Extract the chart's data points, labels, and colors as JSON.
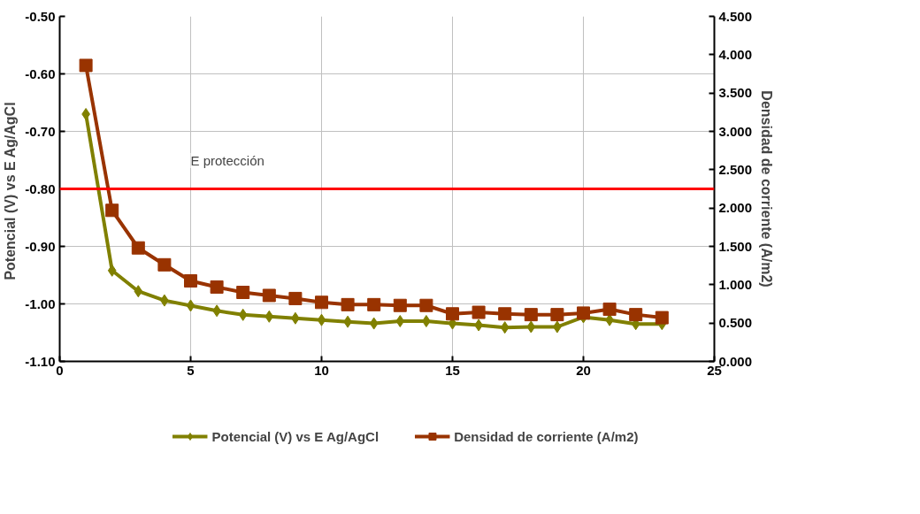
{
  "chart_data": {
    "type": "line",
    "ylabel": "Potencial (V) vs E  Ag/AgCl",
    "y2label": "Densidad de corriente (A/m2)",
    "x": [
      1,
      2,
      3,
      4,
      5,
      6,
      7,
      8,
      9,
      10,
      11,
      12,
      13,
      14,
      15,
      16,
      17,
      18,
      19,
      20,
      21,
      22,
      23
    ],
    "series": [
      {
        "name": "Potencial (V) vs E Ag/AgCl",
        "color": "#808000",
        "marker": "diamond",
        "values": [
          -0.67,
          -0.942,
          -0.978,
          -0.994,
          -1.003,
          -1.012,
          -1.019,
          -1.022,
          -1.025,
          -1.028,
          -1.031,
          -1.034,
          -1.03,
          -1.03,
          -1.034,
          -1.037,
          -1.041,
          -1.04,
          -1.04,
          -1.023,
          -1.028,
          -1.035,
          -1.035
        ]
      },
      {
        "name": "Densidad de corriente (A/m2)",
        "color": "#993300",
        "marker": "square",
        "axis": "y2",
        "values": [
          3.86,
          1.97,
          1.48,
          1.26,
          1.05,
          0.97,
          0.9,
          0.86,
          0.82,
          0.77,
          0.74,
          0.74,
          0.73,
          0.73,
          0.62,
          0.64,
          0.62,
          0.61,
          0.61,
          0.63,
          0.68,
          0.61,
          0.57
        ]
      }
    ],
    "xlim": [
      0,
      25
    ],
    "xticks": [
      0,
      5,
      10,
      15,
      20,
      25
    ],
    "ylim": [
      -1.1,
      -0.5
    ],
    "yticks": [
      {
        "value": -1.1,
        "label": "-1.10"
      },
      {
        "value": -1.0,
        "label": "-1.00"
      },
      {
        "value": -0.9,
        "label": "-0.90"
      },
      {
        "value": -0.8,
        "label": "-0.80"
      },
      {
        "value": -0.7,
        "label": "-0.70"
      },
      {
        "value": -0.6,
        "label": "-0.60"
      },
      {
        "value": -0.5,
        "label": "-0.50"
      }
    ],
    "y2lim": [
      0,
      4.5
    ],
    "y2ticks": [
      {
        "value": 0,
        "label": "0.000"
      },
      {
        "value": 0.5,
        "label": "0.500"
      },
      {
        "value": 1.0,
        "label": "1.000"
      },
      {
        "value": 1.5,
        "label": "1.500"
      },
      {
        "value": 2.0,
        "label": "2.000"
      },
      {
        "value": 2.5,
        "label": "2.500"
      },
      {
        "value": 3.0,
        "label": "3.000"
      },
      {
        "value": 3.5,
        "label": "3.500"
      },
      {
        "value": 4.0,
        "label": "4.000"
      },
      {
        "value": 4.5,
        "label": "4.500"
      }
    ],
    "ref_lines": [
      {
        "axis": "y",
        "value": -0.8,
        "label": "E protección",
        "color": "#ff0000"
      }
    ],
    "grid": true,
    "legend": "bottom"
  }
}
